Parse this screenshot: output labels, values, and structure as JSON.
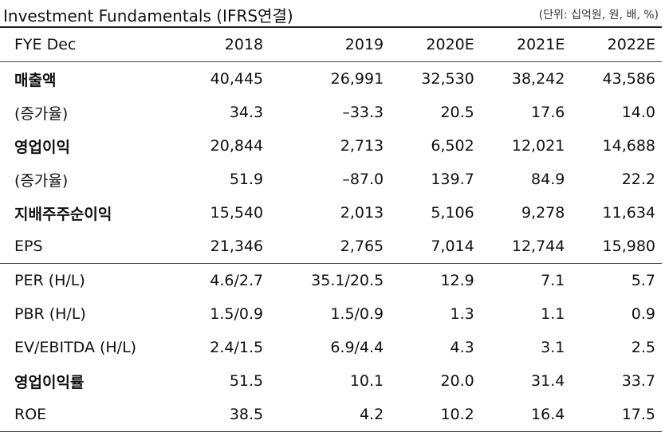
{
  "header": {
    "title": "Investment Fundamentals (IFRS연결)",
    "unit": "(단위: 십억원, 원, 배, %)"
  },
  "table": {
    "columns": [
      "FYE Dec",
      "2018",
      "2019",
      "2020E",
      "2021E",
      "2022E"
    ],
    "rows": [
      {
        "label": "매출액",
        "bold": true,
        "values": [
          "40,445",
          "26,991",
          "32,530",
          "38,242",
          "43,586"
        ]
      },
      {
        "label": "(증가율)",
        "bold": false,
        "values": [
          "34.3",
          "–33.3",
          "20.5",
          "17.6",
          "14.0"
        ]
      },
      {
        "label": "영업이익",
        "bold": true,
        "values": [
          "20,844",
          "2,713",
          "6,502",
          "12,021",
          "14,688"
        ]
      },
      {
        "label": "(증가율)",
        "bold": false,
        "values": [
          "51.9",
          "–87.0",
          "139.7",
          "84.9",
          "22.2"
        ]
      },
      {
        "label": "지배주주순이익",
        "bold": true,
        "values": [
          "15,540",
          "2,013",
          "5,106",
          "9,278",
          "11,634"
        ]
      },
      {
        "label": "EPS",
        "bold": false,
        "values": [
          "21,346",
          "2,765",
          "7,014",
          "12,744",
          "15,980"
        ]
      },
      {
        "label": "PER (H/L)",
        "bold": false,
        "values": [
          "4.6/2.7",
          "35.1/20.5",
          "12.9",
          "7.1",
          "5.7"
        ]
      },
      {
        "label": "PBR (H/L)",
        "bold": false,
        "values": [
          "1.5/0.9",
          "1.5/0.9",
          "1.3",
          "1.1",
          "0.9"
        ]
      },
      {
        "label": "EV/EBITDA (H/L)",
        "bold": false,
        "values": [
          "2.4/1.5",
          "6.9/4.4",
          "4.3",
          "3.1",
          "2.5"
        ]
      },
      {
        "label": "영업이익률",
        "bold": true,
        "values": [
          "51.5",
          "10.1",
          "20.0",
          "31.4",
          "33.7"
        ]
      },
      {
        "label": "ROE",
        "bold": false,
        "values": [
          "38.5",
          "4.2",
          "10.2",
          "16.4",
          "17.5"
        ]
      }
    ]
  }
}
